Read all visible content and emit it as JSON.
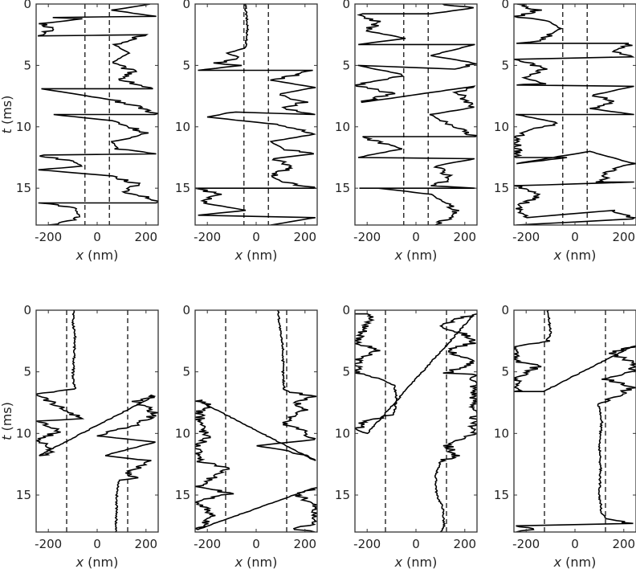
{
  "chart_data": {
    "type": "line",
    "layout": {
      "rows": 2,
      "cols": 4
    },
    "xlabel": "x (nm)",
    "xlabel_italic_symbol": "x",
    "xlabel_unit": "(nm)",
    "ylabel": "t (ms)",
    "ylabel_italic_symbol": "t",
    "ylabel_unit": "(ms)",
    "xlim": [
      -250,
      250
    ],
    "ylim": [
      18,
      0
    ],
    "y_inverted": true,
    "xticks": [
      -200,
      0,
      200
    ],
    "yticks": [
      0,
      5,
      10,
      15
    ],
    "line_color": "#000000",
    "grid": false,
    "panels": [
      {
        "row": 0,
        "col": 0,
        "thresholds": [
          -50,
          50
        ],
        "trace": [
          [
            220,
            0
          ],
          [
            60,
            0.5
          ],
          [
            240,
            1
          ],
          [
            -200,
            1.1
          ],
          [
            -60,
            1.2
          ],
          [
            -230,
            1.6
          ],
          [
            -180,
            2.0
          ],
          [
            -240,
            2.6
          ],
          [
            200,
            2.5
          ],
          [
            70,
            3.3
          ],
          [
            130,
            4.0
          ],
          [
            60,
            4.8
          ],
          [
            150,
            5.5
          ],
          [
            100,
            6.2
          ],
          [
            230,
            6.9
          ],
          [
            -230,
            6.9
          ],
          [
            60,
            7.8
          ],
          [
            180,
            8.4
          ],
          [
            240,
            9.0
          ],
          [
            -180,
            9.0
          ],
          [
            60,
            9.5
          ],
          [
            200,
            10.5
          ],
          [
            60,
            11.2
          ],
          [
            90,
            11.8
          ],
          [
            240,
            12.2
          ],
          [
            -240,
            12.3
          ],
          [
            -100,
            12.8
          ],
          [
            -60,
            13.2
          ],
          [
            -240,
            13.5
          ],
          [
            60,
            14.0
          ],
          [
            160,
            14.6
          ],
          [
            120,
            15.3
          ],
          [
            220,
            15.8
          ],
          [
            240,
            16.2
          ],
          [
            -240,
            16.2
          ],
          [
            -90,
            16.6
          ],
          [
            -70,
            17.4
          ],
          [
            -200,
            18.0
          ]
        ]
      },
      {
        "row": 0,
        "col": 1,
        "thresholds": [
          -50,
          50
        ],
        "trace": [
          [
            -45,
            0
          ],
          [
            -40,
            1
          ],
          [
            -35,
            2
          ],
          [
            -40,
            3
          ],
          [
            -45,
            3.6
          ],
          [
            -120,
            4.0
          ],
          [
            -60,
            4.4
          ],
          [
            -160,
            4.8
          ],
          [
            -60,
            5.0
          ],
          [
            -240,
            5.4
          ],
          [
            230,
            5.4
          ],
          [
            160,
            5.8
          ],
          [
            60,
            6.2
          ],
          [
            240,
            6.8
          ],
          [
            80,
            7.4
          ],
          [
            200,
            8.0
          ],
          [
            100,
            8.5
          ],
          [
            240,
            9.0
          ],
          [
            -90,
            8.8
          ],
          [
            -200,
            9.2
          ],
          [
            80,
            9.8
          ],
          [
            180,
            10.2
          ],
          [
            240,
            10.6
          ],
          [
            60,
            11.2
          ],
          [
            110,
            11.8
          ],
          [
            240,
            12.2
          ],
          [
            60,
            12.6
          ],
          [
            150,
            13.2
          ],
          [
            60,
            14.0
          ],
          [
            110,
            14.5
          ],
          [
            240,
            15.0
          ],
          [
            -240,
            15.0
          ],
          [
            -160,
            15.5
          ],
          [
            -220,
            16.2
          ],
          [
            -40,
            16.8
          ],
          [
            -240,
            17.2
          ],
          [
            240,
            17.4
          ],
          [
            60,
            18.0
          ]
        ]
      },
      {
        "row": 0,
        "col": 2,
        "thresholds": [
          -50,
          50
        ],
        "trace": [
          [
            100,
            0
          ],
          [
            240,
            0.3
          ],
          [
            60,
            0.8
          ],
          [
            -240,
            0.8
          ],
          [
            -150,
            1.5
          ],
          [
            -200,
            2.2
          ],
          [
            -40,
            2.8
          ],
          [
            -240,
            3.3
          ],
          [
            240,
            3.3
          ],
          [
            60,
            4.2
          ],
          [
            240,
            4.8
          ],
          [
            160,
            5.3
          ],
          [
            -240,
            5.0
          ],
          [
            -40,
            5.8
          ],
          [
            -150,
            6.2
          ],
          [
            -240,
            6.6
          ],
          [
            -100,
            7.3
          ],
          [
            -220,
            8.0
          ],
          [
            240,
            6.7
          ],
          [
            170,
            7.2
          ],
          [
            240,
            8.4
          ],
          [
            60,
            9.0
          ],
          [
            100,
            9.5
          ],
          [
            200,
            10.2
          ],
          [
            240,
            10.8
          ],
          [
            -240,
            10.8
          ],
          [
            -100,
            11.5
          ],
          [
            -60,
            11.8
          ],
          [
            -240,
            12.5
          ],
          [
            240,
            12.6
          ],
          [
            80,
            13.2
          ],
          [
            150,
            14.2
          ],
          [
            60,
            14.8
          ],
          [
            240,
            15.0
          ],
          [
            -240,
            15.0
          ],
          [
            -150,
            15.0
          ],
          [
            60,
            15.5
          ],
          [
            130,
            16.3
          ],
          [
            170,
            17.0
          ],
          [
            80,
            18.0
          ]
        ]
      },
      {
        "row": 0,
        "col": 3,
        "thresholds": [
          -50,
          50
        ],
        "trace": [
          [
            -240,
            0
          ],
          [
            -150,
            0.5
          ],
          [
            -240,
            1.0
          ],
          [
            -100,
            1.5
          ],
          [
            -60,
            2.0
          ],
          [
            -100,
            2.5
          ],
          [
            -150,
            3.0
          ],
          [
            -240,
            3.2
          ],
          [
            240,
            3.2
          ],
          [
            160,
            3.8
          ],
          [
            240,
            4.3
          ],
          [
            -240,
            4.5
          ],
          [
            -120,
            5.3
          ],
          [
            -200,
            6.0
          ],
          [
            -140,
            6.5
          ],
          [
            -240,
            6.6
          ],
          [
            240,
            6.7
          ],
          [
            80,
            7.4
          ],
          [
            160,
            8.0
          ],
          [
            60,
            8.5
          ],
          [
            240,
            9.0
          ],
          [
            -240,
            9.0
          ],
          [
            -60,
            9.7
          ],
          [
            -180,
            10.2
          ],
          [
            -240,
            11.0
          ],
          [
            -240,
            12.5
          ],
          [
            -30,
            12.5
          ],
          [
            -240,
            13.0
          ],
          [
            60,
            12.0
          ],
          [
            240,
            13.0
          ],
          [
            150,
            13.5
          ],
          [
            100,
            14.5
          ],
          [
            240,
            14.5
          ],
          [
            -240,
            14.8
          ],
          [
            -130,
            15.5
          ],
          [
            -240,
            16.5
          ],
          [
            -200,
            17.4
          ],
          [
            160,
            16.8
          ],
          [
            240,
            17.5
          ],
          [
            -240,
            18.0
          ]
        ]
      },
      {
        "row": 1,
        "col": 0,
        "thresholds": [
          -125,
          125
        ],
        "trace": [
          [
            -95,
            0
          ],
          [
            -100,
            1
          ],
          [
            -90,
            2
          ],
          [
            -95,
            4
          ],
          [
            -100,
            5.5
          ],
          [
            -90,
            6.4
          ],
          [
            -240,
            6.8
          ],
          [
            -160,
            7.8
          ],
          [
            -60,
            8.8
          ],
          [
            -240,
            9.0
          ],
          [
            -160,
            9.8
          ],
          [
            -240,
            10.5
          ],
          [
            -175,
            11.5
          ],
          [
            -240,
            11.8
          ],
          [
            240,
            6.9
          ],
          [
            160,
            7.4
          ],
          [
            240,
            8.4
          ],
          [
            150,
            9.4
          ],
          [
            0,
            10.2
          ],
          [
            240,
            10.7
          ],
          [
            30,
            11.8
          ],
          [
            200,
            12.2
          ],
          [
            130,
            13.3
          ],
          [
            170,
            13.6
          ],
          [
            90,
            13.8
          ],
          [
            80,
            15.0
          ],
          [
            80,
            16.5
          ],
          [
            75,
            18.0
          ]
        ]
      },
      {
        "row": 1,
        "col": 1,
        "thresholds": [
          -125,
          125
        ],
        "trace": [
          [
            90,
            0
          ],
          [
            95,
            1
          ],
          [
            100,
            2
          ],
          [
            110,
            3
          ],
          [
            110,
            5
          ],
          [
            115,
            6.5
          ],
          [
            240,
            7.0
          ],
          [
            160,
            7.5
          ],
          [
            200,
            8.0
          ],
          [
            110,
            9.2
          ],
          [
            200,
            9.8
          ],
          [
            240,
            10.5
          ],
          [
            0,
            11.0
          ],
          [
            160,
            11.5
          ],
          [
            240,
            12.2
          ],
          [
            -240,
            7.3
          ],
          [
            -180,
            7.8
          ],
          [
            -240,
            8.2
          ],
          [
            -200,
            10.5
          ],
          [
            -240,
            10.9
          ],
          [
            -240,
            12.2
          ],
          [
            -110,
            12.8
          ],
          [
            -170,
            13.5
          ],
          [
            -240,
            14.3
          ],
          [
            -100,
            14.9
          ],
          [
            -240,
            15.5
          ],
          [
            -180,
            16.5
          ],
          [
            -240,
            17.8
          ],
          [
            240,
            14.4
          ],
          [
            170,
            15.0
          ],
          [
            240,
            15.8
          ],
          [
            240,
            17.3
          ],
          [
            160,
            17.8
          ],
          [
            240,
            18.0
          ]
        ]
      },
      {
        "row": 1,
        "col": 2,
        "thresholds": [
          -125,
          125
        ],
        "trace": [
          [
            -240,
            0.3
          ],
          [
            -180,
            0.3
          ],
          [
            -240,
            2.7
          ],
          [
            -160,
            3.2
          ],
          [
            -240,
            4.0
          ],
          [
            -240,
            5.1
          ],
          [
            -140,
            5.6
          ],
          [
            -90,
            6.1
          ],
          [
            -80,
            7.0
          ],
          [
            -90,
            8.5
          ],
          [
            -220,
            9.0
          ],
          [
            -240,
            9.8
          ],
          [
            -200,
            10.0
          ],
          [
            240,
            0.3
          ],
          [
            100,
            1.2
          ],
          [
            200,
            2.0
          ],
          [
            240,
            2.6
          ],
          [
            130,
            3.3
          ],
          [
            240,
            4.2
          ],
          [
            120,
            5.1
          ],
          [
            240,
            5.2
          ],
          [
            240,
            10.0
          ],
          [
            130,
            11.0
          ],
          [
            160,
            11.8
          ],
          [
            100,
            12.3
          ],
          [
            80,
            13.5
          ],
          [
            85,
            15.0
          ],
          [
            110,
            16.0
          ],
          [
            115,
            17.5
          ],
          [
            100,
            18.0
          ]
        ]
      },
      {
        "row": 1,
        "col": 3,
        "thresholds": [
          -125,
          125
        ],
        "trace": [
          [
            -110,
            0
          ],
          [
            -105,
            1
          ],
          [
            -100,
            2
          ],
          [
            -120,
            2.5
          ],
          [
            -240,
            2.9
          ],
          [
            -240,
            4.2
          ],
          [
            -150,
            4.5
          ],
          [
            -240,
            5.5
          ],
          [
            -240,
            6.6
          ],
          [
            -130,
            6.6
          ],
          [
            240,
            2.9
          ],
          [
            150,
            3.5
          ],
          [
            240,
            4.2
          ],
          [
            240,
            5.0
          ],
          [
            130,
            5.6
          ],
          [
            240,
            6.2
          ],
          [
            130,
            7.4
          ],
          [
            95,
            7.6
          ],
          [
            110,
            9.0
          ],
          [
            100,
            11.0
          ],
          [
            105,
            13.0
          ],
          [
            100,
            15.0
          ],
          [
            110,
            16.5
          ],
          [
            130,
            17.0
          ],
          [
            240,
            17.3
          ],
          [
            -240,
            17.5
          ],
          [
            -160,
            17.8
          ],
          [
            -240,
            18.0
          ]
        ]
      }
    ]
  }
}
